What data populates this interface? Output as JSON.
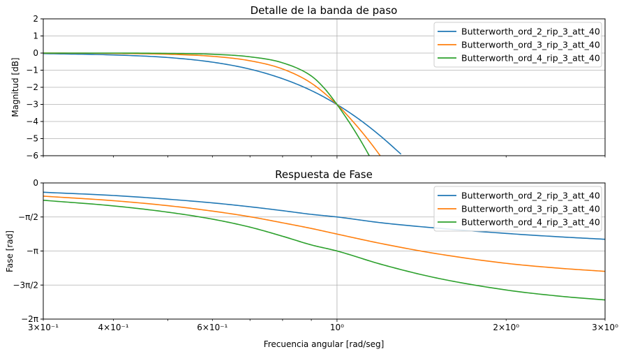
{
  "chart_data": [
    {
      "type": "line",
      "title": "Detalle de la banda de paso",
      "xlabel": "",
      "ylabel": "Magnitud [dB]",
      "xscale": "log",
      "xlim": [
        0.3,
        3
      ],
      "ylim": [
        -6,
        2
      ],
      "yticks": [
        2,
        1,
        0,
        -1,
        -2,
        -3,
        -4,
        -5,
        -6
      ],
      "yticklabels": [
        "2",
        "1",
        "0",
        "−1",
        "−2",
        "−3",
        "−4",
        "−5",
        "−6"
      ],
      "grid": true,
      "legend_position": "top-right",
      "series": [
        {
          "name": "Butterworth_ord_2_rip_3_att_40",
          "color": "#1f77b4",
          "x": [
            0.3,
            0.4,
            0.5,
            0.6,
            0.7,
            0.8,
            0.9,
            1.0,
            1.1,
            1.2,
            1.3
          ],
          "y": [
            -0.03,
            -0.11,
            -0.26,
            -0.53,
            -0.94,
            -1.5,
            -2.19,
            -3.01,
            -3.92,
            -4.9,
            -5.91
          ]
        },
        {
          "name": "Butterworth_ord_3_rip_3_att_40",
          "color": "#ff7f0e",
          "x": [
            0.3,
            0.4,
            0.5,
            0.6,
            0.7,
            0.8,
            0.9,
            1.0,
            1.05,
            1.1,
            1.15,
            1.2
          ],
          "y": [
            0.0,
            -0.02,
            -0.07,
            -0.19,
            -0.45,
            -0.93,
            -1.76,
            -3.01,
            -3.74,
            -4.5,
            -5.29,
            -6.1
          ]
        },
        {
          "name": "Butterworth_ord_4_rip_3_att_40",
          "color": "#2ca02c",
          "x": [
            0.3,
            0.4,
            0.5,
            0.6,
            0.7,
            0.8,
            0.9,
            0.95,
            1.0,
            1.05,
            1.1,
            1.15
          ],
          "y": [
            0.0,
            0.0,
            -0.02,
            -0.07,
            -0.22,
            -0.57,
            -1.34,
            -2.07,
            -3.01,
            -4.02,
            -5.08,
            -6.19
          ]
        }
      ]
    },
    {
      "type": "line",
      "title": "Respuesta de Fase",
      "xlabel": "Frecuencia angular [rad/seg]",
      "ylabel": "Fase [rad]",
      "xscale": "log",
      "xlim": [
        0.3,
        3
      ],
      "ylim": [
        -6.2832,
        0
      ],
      "xticks": [
        0.3,
        0.4,
        0.6,
        1,
        2,
        3
      ],
      "xticklabels": [
        "3×10⁻¹",
        "4×10⁻¹",
        "6×10⁻¹",
        "10⁰",
        "2×10⁰",
        "3×10⁰"
      ],
      "yticks": [
        0,
        -1.5708,
        -3.1416,
        -4.7124,
        -6.2832
      ],
      "yticklabels": [
        "0",
        "−π/2",
        "−π",
        "−3π/2",
        "−2π"
      ],
      "grid": true,
      "legend_position": "top-right",
      "series": [
        {
          "name": "Butterworth_ord_2_rip_3_att_40",
          "color": "#1f77b4",
          "x": [
            0.3,
            0.4,
            0.5,
            0.6,
            0.7,
            0.8,
            0.9,
            1.0,
            1.2,
            1.5,
            2.0,
            2.5,
            3.0
          ],
          "y": [
            -0.43,
            -0.58,
            -0.75,
            -0.92,
            -1.1,
            -1.28,
            -1.45,
            -1.57,
            -1.84,
            -2.08,
            -2.33,
            -2.49,
            -2.6
          ]
        },
        {
          "name": "Butterworth_ord_3_rip_3_att_40",
          "color": "#ff7f0e",
          "x": [
            0.3,
            0.4,
            0.5,
            0.6,
            0.7,
            0.8,
            0.9,
            1.0,
            1.2,
            1.5,
            2.0,
            2.5,
            3.0
          ],
          "y": [
            -0.61,
            -0.82,
            -1.05,
            -1.3,
            -1.56,
            -1.84,
            -2.1,
            -2.36,
            -2.8,
            -3.26,
            -3.71,
            -3.94,
            -4.08
          ]
        },
        {
          "name": "Butterworth_ord_4_rip_3_att_40",
          "color": "#2ca02c",
          "x": [
            0.3,
            0.4,
            0.5,
            0.6,
            0.7,
            0.8,
            0.9,
            1.0,
            1.2,
            1.5,
            2.0,
            2.5,
            3.0
          ],
          "y": [
            -0.8,
            -1.06,
            -1.35,
            -1.67,
            -2.04,
            -2.46,
            -2.86,
            -3.14,
            -3.76,
            -4.38,
            -4.94,
            -5.23,
            -5.4
          ]
        }
      ]
    }
  ]
}
